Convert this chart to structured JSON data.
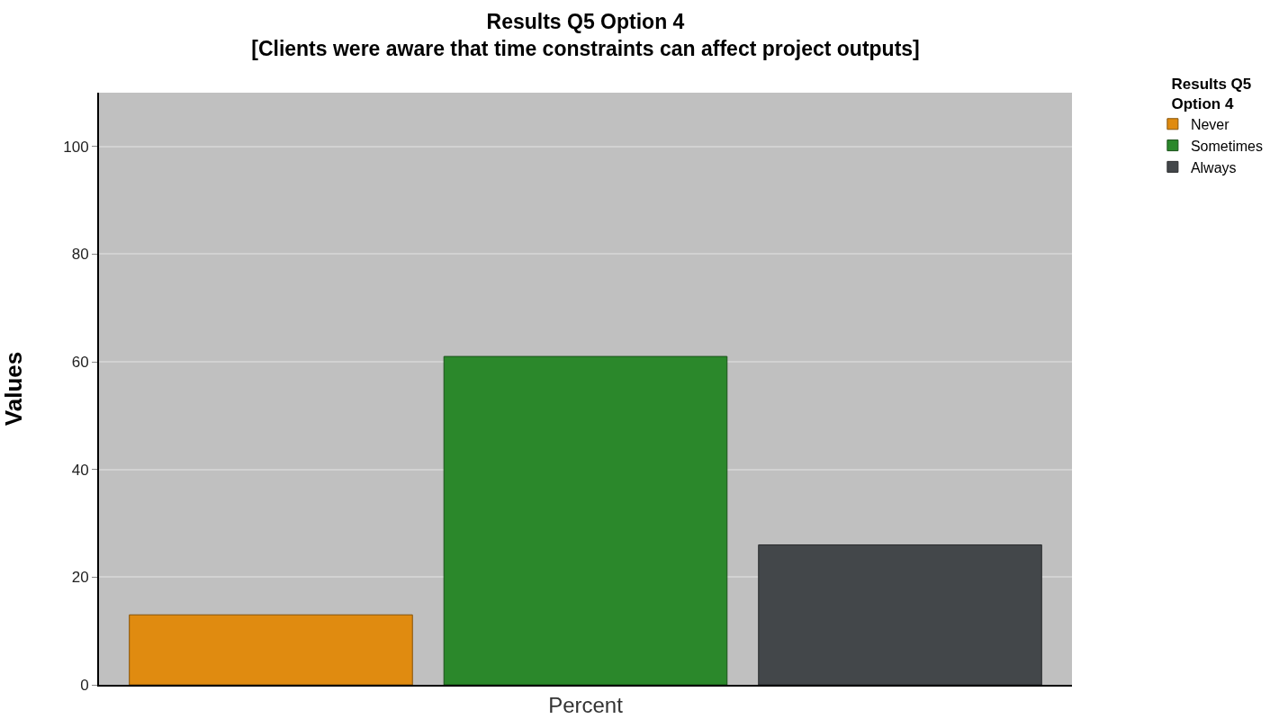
{
  "chart_data": {
    "type": "bar",
    "title": "Results Q5 Option 4\n[Clients were aware that time constraints can affect project outputs]",
    "ylabel": "Values",
    "legend_title": "Results Q5\nOption 4",
    "categories": [
      "Percent"
    ],
    "series": [
      {
        "name": "Never",
        "color": "#e08b10",
        "values": [
          13
        ]
      },
      {
        "name": "Sometimes",
        "color": "#2b882b",
        "values": [
          61
        ]
      },
      {
        "name": "Always",
        "color": "#43474a",
        "values": [
          26
        ]
      }
    ],
    "ylim": [
      0,
      110
    ],
    "yticks": [
      0,
      20,
      40,
      60,
      80,
      100
    ],
    "grid": "y",
    "legend": "top right"
  }
}
